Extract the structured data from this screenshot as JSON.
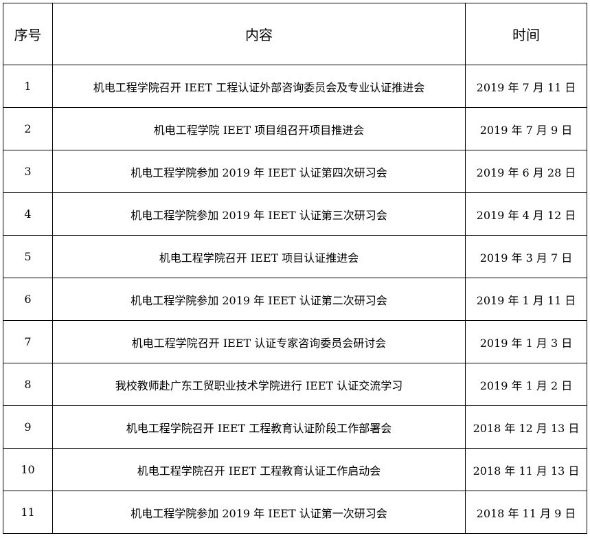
{
  "headers": {
    "index": "序号",
    "content": "内容",
    "time": "时间"
  },
  "rows": [
    {
      "index": "1",
      "content": "机电工程学院召开 IEET 工程认证外部咨询委员会及专业认证推进会",
      "time": "2019 年 7 月 11 日"
    },
    {
      "index": "2",
      "content": "机电工程学院 IEET 项目组召开项目推进会",
      "time": "2019 年 7 月 9 日"
    },
    {
      "index": "3",
      "content": "机电工程学院参加 2019 年 IEET 认证第四次研习会",
      "time": "2019 年 6 月 28 日"
    },
    {
      "index": "4",
      "content": "机电工程学院参加 2019 年 IEET 认证第三次研习会",
      "time": "2019 年 4 月 12 日"
    },
    {
      "index": "5",
      "content": "机电工程学院召开 IEET 项目认证推进会",
      "time": "2019 年 3 月 7 日"
    },
    {
      "index": "6",
      "content": "机电工程学院参加 2019 年 IEET 认证第二次研习会",
      "time": "2019 年 1 月 11 日"
    },
    {
      "index": "7",
      "content": "机电工程学院召开 IEET 认证专家咨询委员会研讨会",
      "time": "2019 年 1 月 3 日"
    },
    {
      "index": "8",
      "content": "我校教师赴广东工贸职业技术学院进行 IEET 认证交流学习",
      "time": "2019 年 1 月 2 日"
    },
    {
      "index": "9",
      "content": "机电工程学院召开 IEET 工程教育认证阶段工作部署会",
      "time": "2018 年 12 月 13 日"
    },
    {
      "index": "10",
      "content": "机电工程学院召开 IEET 工程教育认证工作启动会",
      "time": "2018 年 11 月 13 日"
    },
    {
      "index": "11",
      "content": "机电工程学院参加 2019 年 IEET 认证第一次研习会",
      "time": "2018 年 11 月 9 日"
    }
  ]
}
